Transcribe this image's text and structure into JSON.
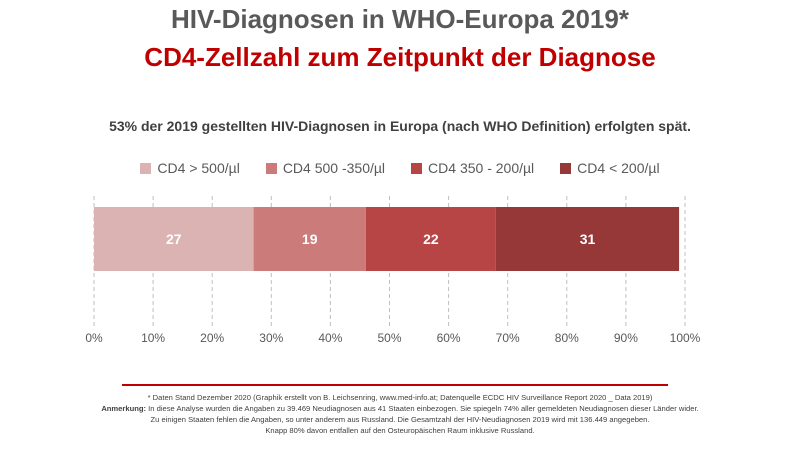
{
  "header": {
    "title": "HIV-Diagnosen in WHO-Europa 2019*",
    "subtitle": "CD4-Zellzahl zum Zeitpunkt der Diagnose",
    "summary": "53% der 2019 gestellten HIV-Diagnosen in Europa (nach WHO Definition) erfolgten spät."
  },
  "chart_data": {
    "type": "bar",
    "orientation": "horizontal",
    "stacked": true,
    "categories": [
      ""
    ],
    "series": [
      {
        "name": "CD4 > 500/µl",
        "values": [
          27
        ],
        "color": "#dbb3b3"
      },
      {
        "name": "CD4 500 -350/µl",
        "values": [
          19
        ],
        "color": "#cc7b7b"
      },
      {
        "name": "CD4 350 - 200/µl",
        "values": [
          22
        ],
        "color": "#b84545"
      },
      {
        "name": "CD4 <  200/µl",
        "values": [
          31
        ],
        "color": "#963838"
      }
    ],
    "xlim": [
      0,
      100
    ],
    "x_ticks": [
      "0%",
      "10%",
      "20%",
      "30%",
      "40%",
      "50%",
      "60%",
      "70%",
      "80%",
      "90%",
      "100%"
    ],
    "grid": true,
    "legend_position": "top"
  },
  "footnotes": {
    "line1": "* Daten Stand Dezember 2020 (Graphik erstellt von B. Leichsenring, www.med-info.at; Datenquelle ECDC HIV Surveillance Report 2020 _ Data 2019)",
    "label": "Anmerkung:",
    "line2": " In diese Analyse wurden die Angaben zu 39.469 Neudiagnosen aus 41 Staaten einbezogen. Sie spiegeln 74% aller gemeldeten Neudiagnosen dieser Länder wider.",
    "line3": "Zu einigen Staaten fehlen die Angaben, so unter anderem aus Russland. Die Gesamtzahl der HIV-Neudiagnosen 2019 wird mit 136.449 angegeben.",
    "line4": "Knapp 80% davon entfallen auf den Osteuropäischen Raum inklusive Russland."
  }
}
